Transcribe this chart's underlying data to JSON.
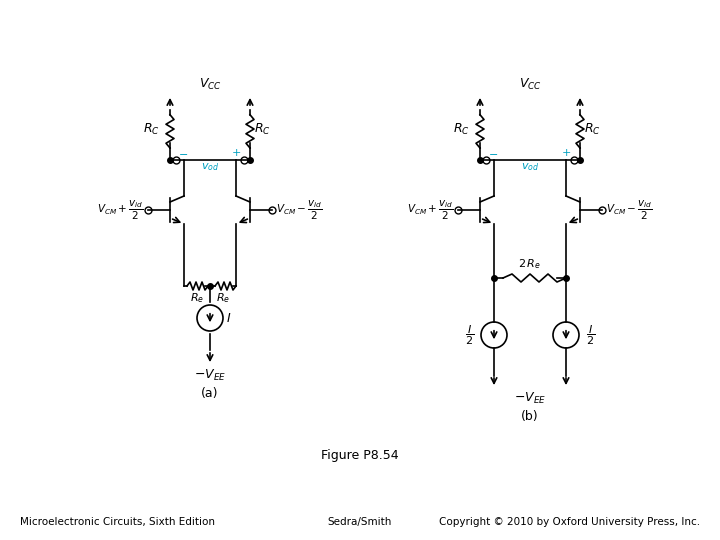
{
  "figure_label": "Figure P8.54",
  "bottom_left": "Microelectronic Circuits, Sixth Edition",
  "bottom_center": "Sedra/Smith",
  "bottom_right": "Copyright © 2010 by Oxford University Press, Inc.",
  "bg_color": "#ffffff",
  "line_color": "#000000",
  "cyan_color": "#00a0c0"
}
